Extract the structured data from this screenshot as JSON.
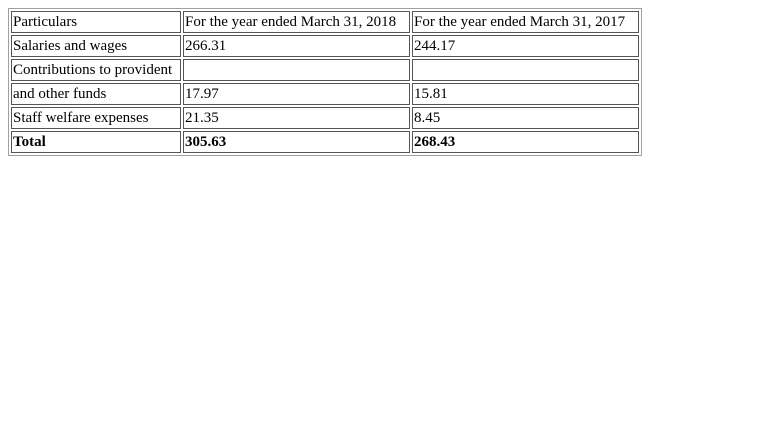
{
  "table": {
    "header": [
      "Particulars",
      "For the year ended March 31, 2018",
      "For the year ended March 31, 2017"
    ],
    "rows": [
      [
        "Salaries and wages",
        "266.31",
        "244.17"
      ],
      [
        "Contributions to provident",
        "",
        ""
      ],
      [
        "and other funds",
        "17.97",
        "15.81"
      ],
      [
        "Staff welfare expenses",
        "21.35",
        "8.45"
      ]
    ],
    "total": [
      "Total",
      "305.63",
      "268.43"
    ]
  }
}
